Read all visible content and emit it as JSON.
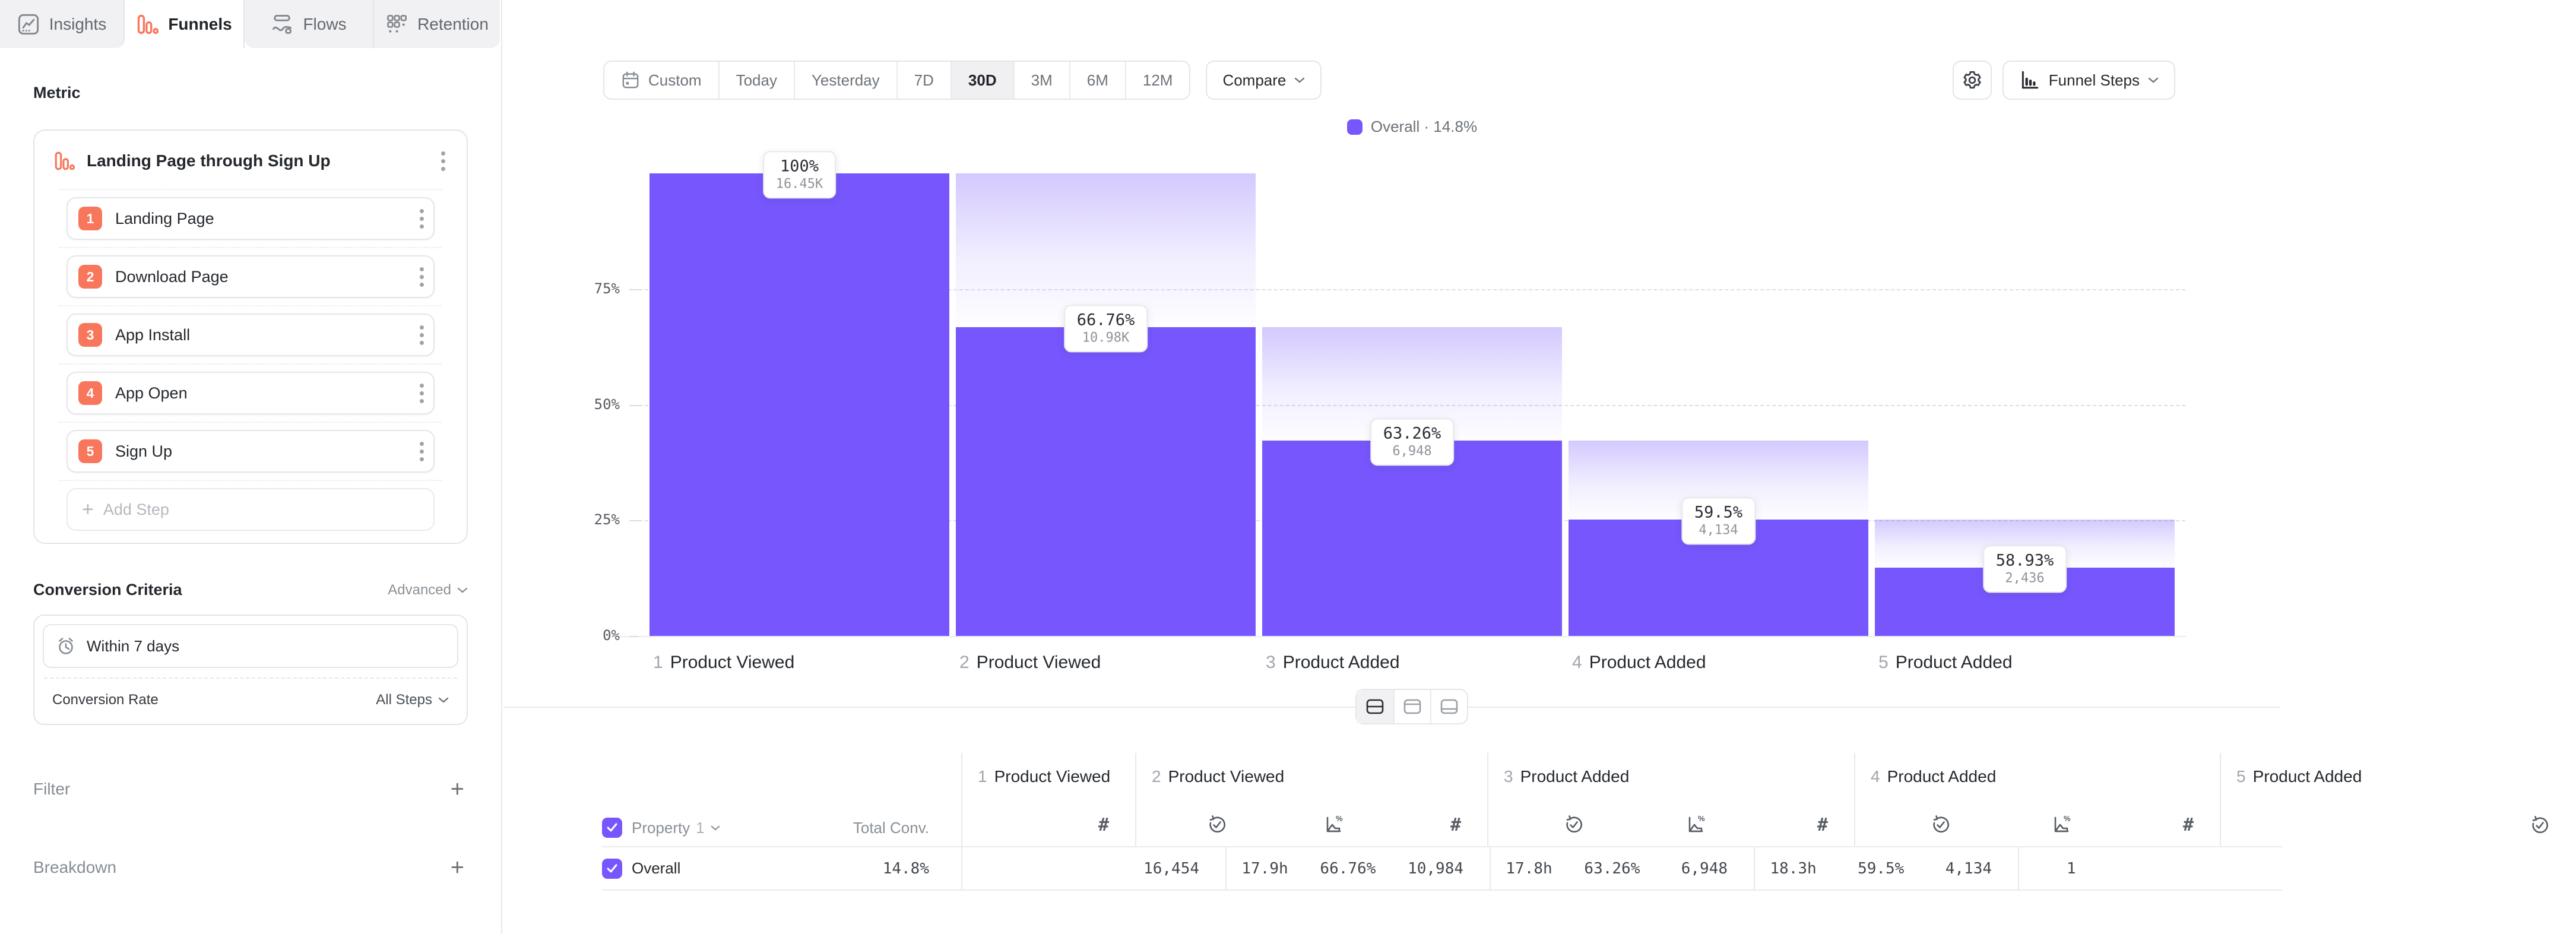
{
  "tabs": [
    {
      "id": "insights",
      "label": "Insights",
      "icon": "insights",
      "active": false
    },
    {
      "id": "funnels",
      "label": "Funnels",
      "icon": "funnels",
      "active": true
    },
    {
      "id": "flows",
      "label": "Flows",
      "icon": "flows",
      "active": false
    },
    {
      "id": "retention",
      "label": "Retention",
      "icon": "retention",
      "active": false
    }
  ],
  "sidebar": {
    "metric_heading": "Metric",
    "funnel": {
      "title": "Landing Page through Sign Up",
      "steps": [
        {
          "num": "1",
          "label": "Landing Page"
        },
        {
          "num": "2",
          "label": "Download Page"
        },
        {
          "num": "3",
          "label": "App Install"
        },
        {
          "num": "4",
          "label": "App Open"
        },
        {
          "num": "5",
          "label": "Sign Up"
        }
      ],
      "add_step_label": "Add Step"
    },
    "conversion_criteria": {
      "heading": "Conversion Criteria",
      "advanced_label": "Advanced",
      "window_label": "Within 7 days",
      "rate_label": "Conversion Rate",
      "rate_value": "All Steps"
    },
    "filter_label": "Filter",
    "breakdown_label": "Breakdown"
  },
  "toolbar": {
    "ranges": [
      "Custom",
      "Today",
      "Yesterday",
      "7D",
      "30D",
      "3M",
      "6M",
      "12M"
    ],
    "active_range": "30D",
    "compare_label": "Compare",
    "view_selector_label": "Funnel Steps"
  },
  "legend": {
    "series": "Overall",
    "sep": "·",
    "value": "14.8%"
  },
  "chart_data": {
    "type": "bar",
    "subtype": "funnel-steps",
    "title": "",
    "categories": [
      "1 Product Viewed",
      "2 Product Viewed",
      "3 Product Added",
      "4 Product Added",
      "5 Product Added"
    ],
    "series": [
      {
        "name": "Overall",
        "counts": [
          16454,
          10984,
          6948,
          4134,
          2436
        ],
        "count_labels": [
          "16.45K",
          "10.98K",
          "6,948",
          "4,134",
          "2,436"
        ],
        "step_conversion_labels": [
          "100%",
          "66.76%",
          "63.26%",
          "59.5%",
          "58.93%"
        ],
        "pct_of_first": [
          100,
          66.76,
          42.23,
          25.13,
          14.81
        ]
      }
    ],
    "overall_conversion": "14.8%",
    "yticks": [
      {
        "label": "75%",
        "pct": 75
      },
      {
        "label": "50%",
        "pct": 50
      },
      {
        "label": "25%",
        "pct": 25
      },
      {
        "label": "0%",
        "pct": 0
      }
    ],
    "gridlines_pct": [
      25,
      50,
      75
    ],
    "ylim": [
      0,
      100
    ],
    "grid": "dashed-horizontal",
    "legend_position": "top-center"
  },
  "table": {
    "property_label": "Property",
    "property_index": "1",
    "total_conv_header": "Total Conv.",
    "groups": [
      {
        "num": "1",
        "label": "Product Viewed",
        "columns": [
          "count"
        ],
        "truncate": true
      },
      {
        "num": "2",
        "label": "Product Viewed",
        "columns": [
          "avg_time",
          "conv_rate",
          "count"
        ]
      },
      {
        "num": "3",
        "label": "Product Added",
        "columns": [
          "avg_time",
          "conv_rate",
          "count"
        ]
      },
      {
        "num": "4",
        "label": "Product Added",
        "columns": [
          "avg_time",
          "conv_rate",
          "count"
        ]
      },
      {
        "num": "5",
        "label": "Product Added",
        "columns": [
          "avg_time"
        ],
        "clipped": true
      }
    ],
    "rows": [
      {
        "label": "Overall",
        "checked": true,
        "total_conv": "14.8%",
        "values": [
          [
            "16,454"
          ],
          [
            "17.9h",
            "66.76%",
            "10,984"
          ],
          [
            "17.8h",
            "63.26%",
            "6,948"
          ],
          [
            "18.3h",
            "59.5%",
            "4,134"
          ],
          [
            "1"
          ]
        ]
      }
    ]
  }
}
